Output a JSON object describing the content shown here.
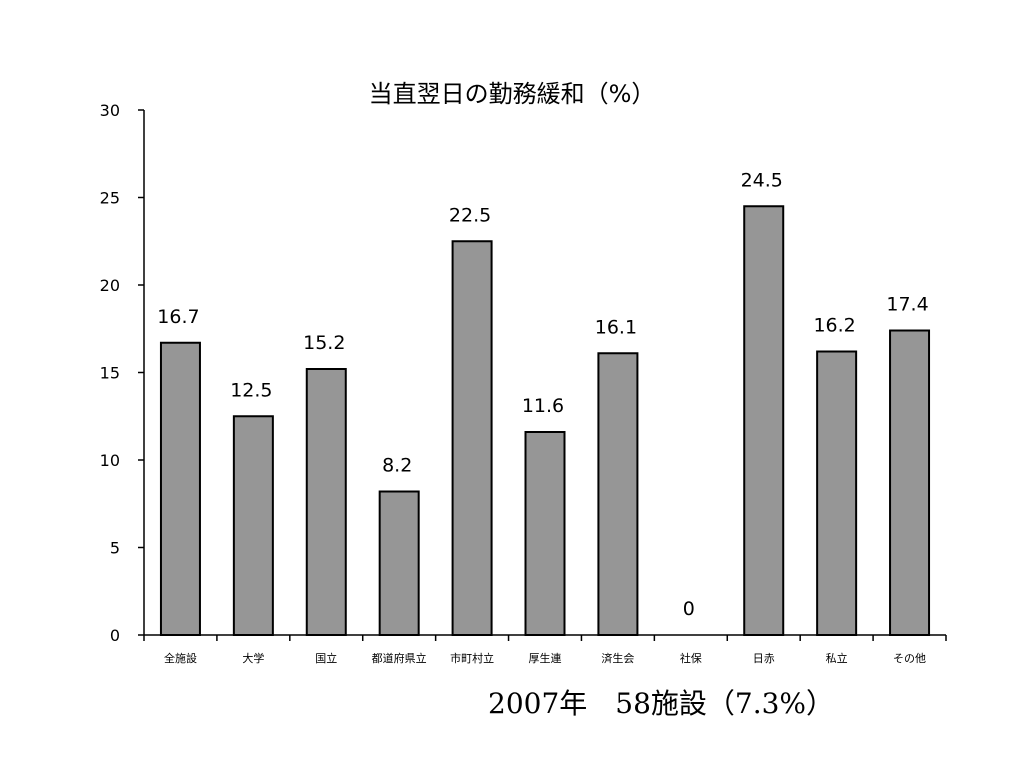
{
  "chart_data": {
    "type": "bar",
    "title": "当直翌日の勤務緩和（%）",
    "categories": [
      "全施設",
      "大学",
      "国立",
      "都道府県立",
      "市町村立",
      "厚生連",
      "済生会",
      "社保",
      "日赤",
      "私立",
      "その他"
    ],
    "values": [
      16.7,
      12.5,
      15.2,
      8.2,
      22.5,
      11.6,
      16.1,
      0,
      24.5,
      16.2,
      17.4
    ],
    "value_labels": [
      "16.7",
      "12.5",
      "15.2",
      "8.2",
      "22.5",
      "11.6",
      "16.1",
      "0",
      "24.5",
      "16.2",
      "17.4"
    ],
    "ylim": [
      0,
      30
    ],
    "yticks": [
      0,
      5,
      10,
      15,
      20,
      25,
      30
    ],
    "xlabel": "",
    "ylabel": "",
    "grid": false,
    "bar_color": "#969696",
    "bar_stroke": "#000000"
  },
  "footer": "2007年　58施設（7.3%）"
}
